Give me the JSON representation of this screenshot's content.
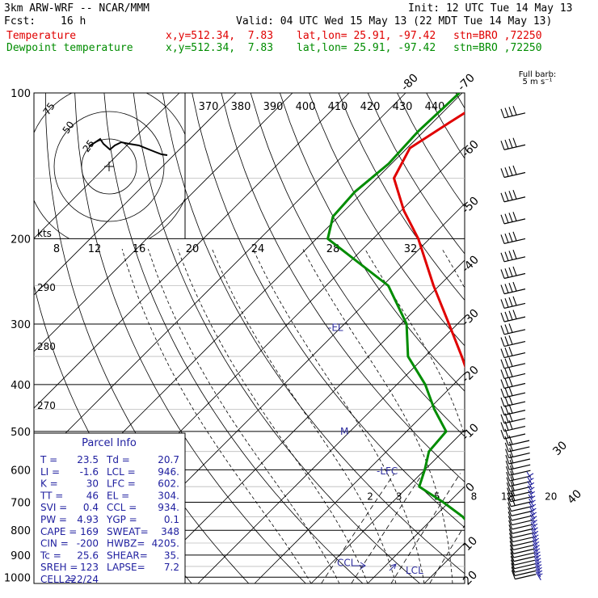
{
  "header": {
    "model": "3km ARW-WRF -- NCAR/MMM",
    "init": "Init: 12 UTC Tue 14 May 13",
    "fcst_label": "Fcst:",
    "fcst_value": "16 h",
    "valid": "Valid: 04 UTC Wed 15 May 13 (22 MDT Tue 14 May 13)",
    "lines": [
      {
        "label": "Temperature",
        "xy": "x,y=512.34,  7.83",
        "latlon": "lat,lon= 25.91, -97.42",
        "stn": "stn=BRO ,72250",
        "color": "#e00000"
      },
      {
        "label": "Dewpoint temperature",
        "xy": "x,y=512.34,  7.83",
        "latlon": "lat,lon= 25.91, -97.42",
        "stn": "stn=BRO ,72250",
        "color": "#008c00"
      }
    ]
  },
  "chart_data": {
    "type": "line",
    "title": "Skew-T log-P sounding",
    "ylabel": "Pressure (hPa)",
    "xlabel": "Temperature (C)",
    "pressure_levels": [
      100,
      200,
      300,
      400,
      500,
      600,
      700,
      800,
      900,
      1000
    ],
    "isotherm_labels": [
      "-80",
      "-70",
      "-60",
      "-50",
      "-40",
      "-30",
      "-20",
      "-10",
      "0",
      "10",
      "20",
      "30",
      "40"
    ],
    "theta_labels_top": [
      "370",
      "380",
      "390",
      "400",
      "410",
      "420",
      "430",
      "440"
    ],
    "theta_labels_left": [
      "290",
      "280",
      "270"
    ],
    "mixing_ratio_labels": [
      "2",
      "3",
      "5",
      "8",
      "12",
      "20"
    ],
    "series": [
      {
        "name": "Temperature",
        "color": "#e00000",
        "p": [
          1000,
          975,
          950,
          925,
          900,
          850,
          800,
          750,
          700,
          650,
          600,
          550,
          500,
          450,
          400,
          350,
          300,
          250,
          200,
          175,
          150,
          130,
          115,
          100
        ],
        "t": [
          23.5,
          21.5,
          20.0,
          20.5,
          21.0,
          19.5,
          16.8,
          13.5,
          10.2,
          6.5,
          3.0,
          -1.2,
          -6.0,
          -11.0,
          -16.8,
          -23.5,
          -31.5,
          -41.0,
          -52.0,
          -59.5,
          -67.0,
          -69.5,
          -67.0,
          -64.0
        ]
      },
      {
        "name": "Dewpoint temperature",
        "color": "#008c00",
        "p": [
          1000,
          975,
          950,
          925,
          900,
          850,
          800,
          750,
          700,
          650,
          600,
          550,
          500,
          450,
          400,
          350,
          300,
          250,
          200,
          180,
          160,
          140,
          120,
          100
        ],
        "t": [
          20.7,
          19.5,
          18.0,
          15.5,
          13.5,
          11.5,
          9.5,
          5.0,
          -1.0,
          -8.0,
          -10.0,
          -12.5,
          -13.0,
          -19.0,
          -25.0,
          -33.0,
          -39.0,
          -49.0,
          -68.0,
          -71.0,
          -71.5,
          -70.5,
          -71.0,
          -70.5
        ]
      }
    ],
    "annotations": [
      {
        "text": "-EL",
        "p": 304
      },
      {
        "text": "-LFC",
        "p": 602
      },
      {
        "text": "CCL",
        "p": 934
      },
      {
        "text": "LCL",
        "p": 946
      },
      {
        "text": "M",
        "p": 500
      }
    ],
    "hodograph": {
      "rings_kts": [
        "25",
        "50",
        "75"
      ],
      "kts_label": "kts",
      "speed_ticks": [
        "8",
        "12",
        "16",
        "20",
        "24",
        "28",
        "32"
      ]
    },
    "wind_barb_label": "Full barb:",
    "wind_barb_unit": "5 m s⁻¹"
  },
  "parcel_info": {
    "title": "Parcel Info",
    "rows": [
      [
        "T  =",
        "23.5",
        "Td =",
        "20.7"
      ],
      [
        "LI =",
        "-1.6",
        "LCL =",
        "946."
      ],
      [
        "K  =",
        "30",
        "LFC =",
        "602."
      ],
      [
        "TT =",
        "46",
        "EL =",
        "304."
      ],
      [
        "SVI =",
        "0.4",
        "CCL =",
        "934."
      ],
      [
        "PW =",
        "4.93",
        "YGP =",
        "0.1"
      ],
      [
        "CAPE =",
        "169",
        "SWEAT=",
        "348"
      ],
      [
        "CIN =",
        "-200",
        "HWBZ=",
        "4205."
      ],
      [
        "Tc =",
        "25.6",
        "SHEAR=",
        "35."
      ],
      [
        "SREH =",
        "123",
        "LAPSE=",
        "7.2"
      ],
      [
        "CELL =",
        "222/24",
        "",
        ""
      ]
    ]
  }
}
